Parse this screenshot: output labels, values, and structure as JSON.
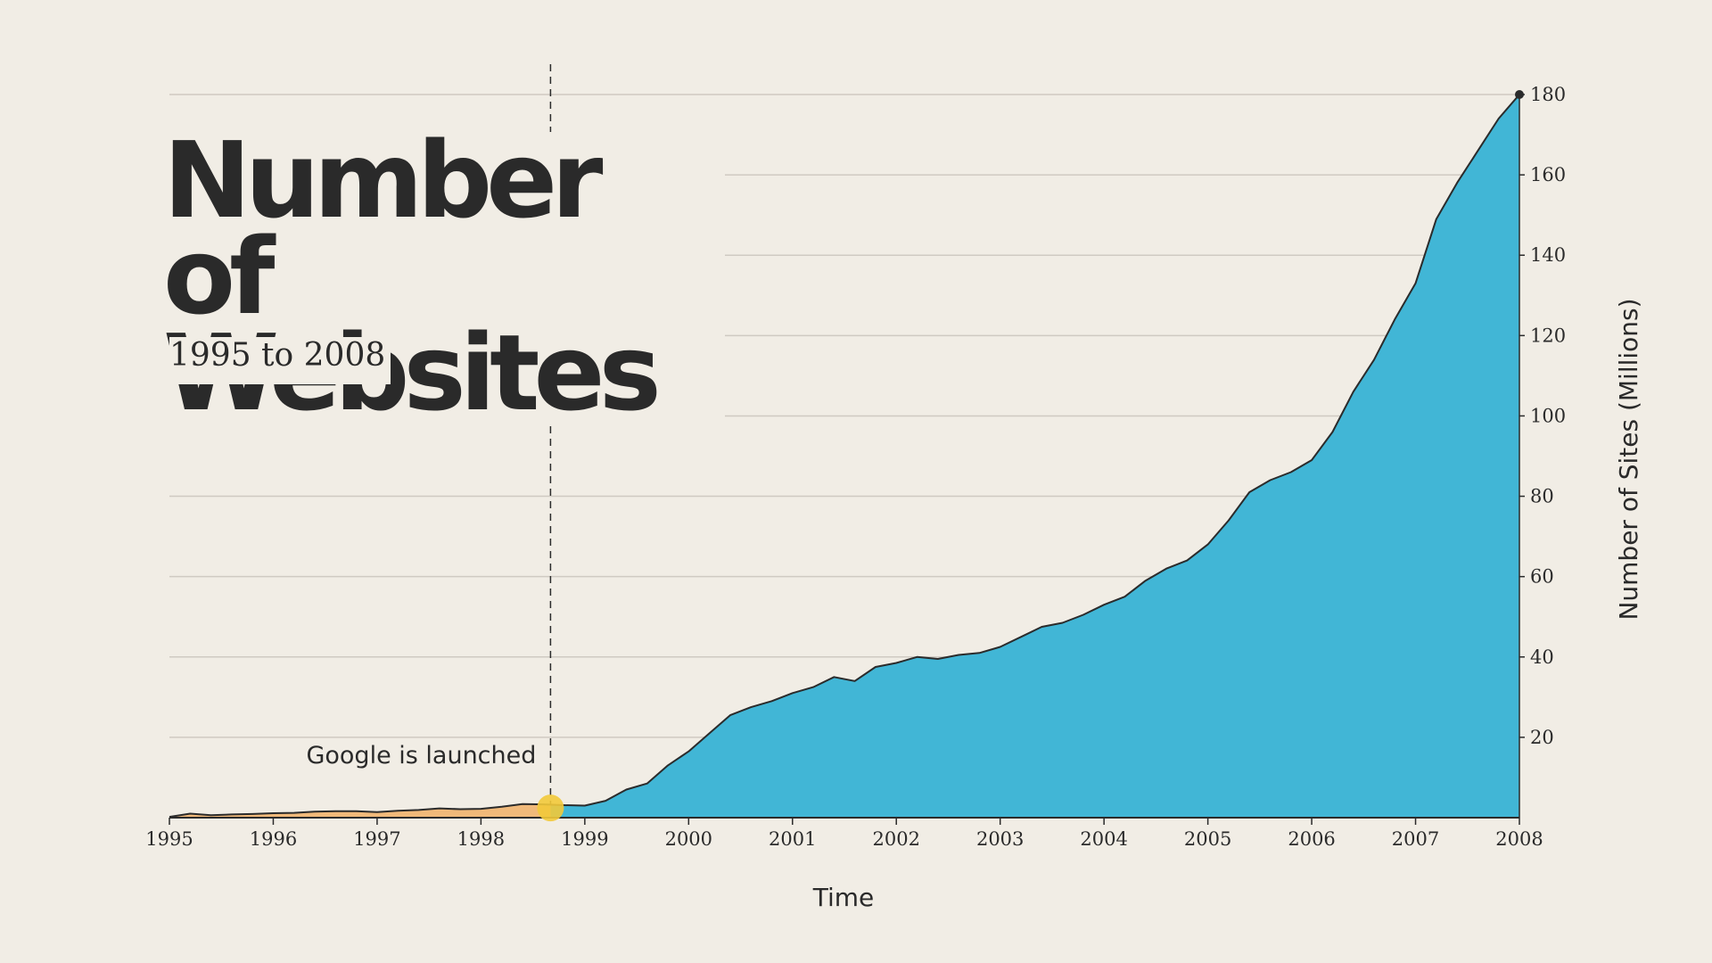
{
  "title": "Number of Websites",
  "subtitle": "1995 to 2008",
  "colors": {
    "background": "#f1ede5",
    "area_after_google": "#41b6d6",
    "area_before_google": "#f0b97a",
    "marker": "#f2c93a",
    "line": "#2b2b2b",
    "grid": "#cfcac2"
  },
  "chart_data": {
    "type": "area",
    "xlabel": "Time",
    "ylabel": "Number of Sites (Millions)",
    "xlim": [
      1995,
      2008
    ],
    "ylim": [
      0,
      180
    ],
    "x_ticks": [
      1995,
      1996,
      1997,
      1998,
      1999,
      2000,
      2001,
      2002,
      2003,
      2004,
      2005,
      2006,
      2007,
      2008
    ],
    "y_ticks": [
      20,
      40,
      60,
      80,
      100,
      120,
      140,
      160,
      180
    ],
    "y_axis_side": "right",
    "grid": true,
    "series": [
      {
        "x": [
          1995.0,
          1995.2,
          1995.4,
          1995.6,
          1995.8,
          1996.0,
          1996.2,
          1996.4,
          1996.6,
          1996.8,
          1997.0,
          1997.2,
          1997.4,
          1997.6,
          1997.8,
          1998.0,
          1998.2,
          1998.4,
          1998.6,
          1998.8,
          1999.0,
          1999.2,
          1999.4,
          1999.6,
          1999.8,
          2000.0,
          2000.2,
          2000.4,
          2000.6,
          2000.8,
          2001.0,
          2001.2,
          2001.4,
          2001.6,
          2001.8,
          2002.0,
          2002.2,
          2002.4,
          2002.6,
          2002.8,
          2003.0,
          2003.2,
          2003.4,
          2003.6,
          2003.8,
          2004.0,
          2004.2,
          2004.4,
          2004.6,
          2004.8,
          2005.0,
          2005.2,
          2005.4,
          2005.6,
          2005.8,
          2006.0,
          2006.2,
          2006.4,
          2006.6,
          2006.8,
          2007.0,
          2007.2,
          2007.4,
          2007.6,
          2007.8,
          2008.0
        ],
        "y": [
          0.2,
          1.0,
          0.6,
          0.8,
          0.9,
          1.1,
          1.2,
          1.5,
          1.6,
          1.6,
          1.4,
          1.7,
          1.9,
          2.3,
          2.1,
          2.2,
          2.7,
          3.4,
          3.3,
          3.1,
          3.0,
          4.2,
          7.0,
          8.5,
          13.0,
          16.5,
          21.0,
          25.5,
          27.5,
          29.0,
          31.0,
          32.5,
          35.0,
          34.0,
          37.5,
          38.5,
          40.0,
          39.5,
          40.5,
          41.0,
          42.5,
          45.0,
          47.5,
          48.5,
          50.5,
          53.0,
          55.0,
          59.0,
          62.0,
          64.0,
          68.0,
          74.0,
          81.0,
          84.0,
          86.0,
          89.0,
          96.0,
          106.0,
          114.0,
          124.0,
          133.0,
          149.0,
          158.0,
          166.0,
          174.0,
          180.0
        ]
      }
    ],
    "annotations": [
      {
        "x": 1998.67,
        "y": 3.3,
        "text": "Google is launched"
      }
    ]
  }
}
